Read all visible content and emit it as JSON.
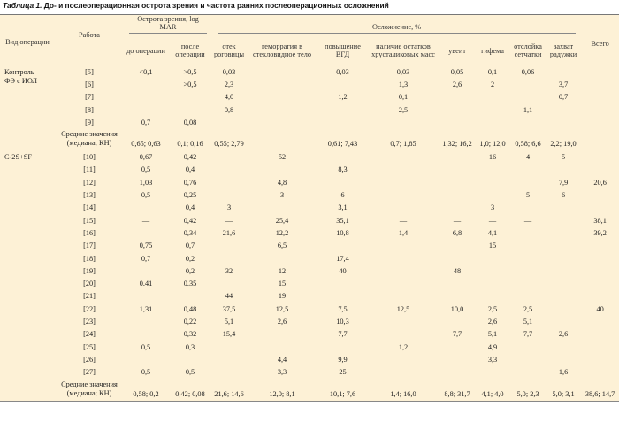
{
  "caption": {
    "prefix": "Таблица 1.",
    "text": " До- и послеоперационная острота зрения и частота ранних послеоперационных осложнений"
  },
  "header": {
    "col_type": "Вид операции",
    "col_work": "Работа",
    "group_acuity": "Острота зрения, log MAR",
    "group_complications": "Осложнение, %",
    "sub": [
      "до операции",
      "после операции",
      "отек роговицы",
      "геморрагия в стекловидное тело",
      "повышение ВГД",
      "наличие остатков хрусталиковых масс",
      "увеит",
      "гифема",
      "отслойка сетчатки",
      "захват радужки",
      "Всего"
    ]
  },
  "groups": [
    {
      "name": "Контроль — ФЭ с ИОЛ",
      "rows": [
        {
          "work": "[5]",
          "values": [
            "<0,1",
            ">0,5",
            "0,03",
            "",
            "0,03",
            "0,03",
            "0,05",
            "0,1",
            "0,06",
            "",
            ""
          ]
        },
        {
          "work": "[6]",
          "values": [
            "",
            ">0,5",
            "2,3",
            "",
            "",
            "1,3",
            "2,6",
            "2",
            "",
            "3,7",
            ""
          ]
        },
        {
          "work": "[7]",
          "values": [
            "",
            "",
            "4,0",
            "",
            "1,2",
            "0,1",
            "",
            "",
            "",
            "0,7",
            ""
          ]
        },
        {
          "work": "[8]",
          "values": [
            "",
            "",
            "0,8",
            "",
            "",
            "2,5",
            "",
            "",
            "1,1",
            "",
            ""
          ]
        },
        {
          "work": "[9]",
          "values": [
            "0,7",
            "0,08",
            "",
            "",
            "",
            "",
            "",
            "",
            "",
            "",
            ""
          ]
        }
      ],
      "mean": {
        "label": "Средние значения (медиана; КН)",
        "values": [
          "0,65; 0,63",
          "0,1; 0,16",
          "0,55; 2,79",
          "",
          "0,61; 7,43",
          "0,7; 1,85",
          "1,32; 16,2",
          "1,0; 12,0",
          "0,58; 6,6",
          "2,2; 19,0",
          ""
        ]
      }
    },
    {
      "name": "С-2S+SF",
      "rows": [
        {
          "work": "[10]",
          "values": [
            "0,67",
            "0,42",
            "",
            "52",
            "",
            "",
            "",
            "16",
            "4",
            "5",
            ""
          ]
        },
        {
          "work": "[11]",
          "values": [
            "0,5",
            "0,4",
            "",
            "",
            "8,3",
            "",
            "",
            "",
            "",
            "",
            ""
          ]
        },
        {
          "work": "[12]",
          "values": [
            "1,03",
            "0,76",
            "",
            "4,8",
            "",
            "",
            "",
            "",
            "",
            "7,9",
            "20,6"
          ]
        },
        {
          "work": "[13]",
          "values": [
            "0,5",
            "0,25",
            "",
            "3",
            "6",
            "",
            "",
            "",
            "5",
            "6",
            ""
          ]
        },
        {
          "work": "[14]",
          "values": [
            "",
            "0,4",
            "3",
            "",
            "3,1",
            "",
            "",
            "3",
            "",
            "",
            ""
          ]
        },
        {
          "work": "[15]",
          "values": [
            "—",
            "0,42",
            "—",
            "25,4",
            "35,1",
            "—",
            "—",
            "—",
            "—",
            "",
            "38,1"
          ]
        },
        {
          "work": "[16]",
          "values": [
            "",
            "0,34",
            "21,6",
            "12,2",
            "10,8",
            "1,4",
            "6,8",
            "4,1",
            "",
            "",
            "39,2"
          ]
        },
        {
          "work": "[17]",
          "values": [
            "0,75",
            "0,7",
            "",
            "6,5",
            "",
            "",
            "",
            "15",
            "",
            "",
            ""
          ]
        },
        {
          "work": "[18]",
          "values": [
            "0,7",
            "0,2",
            "",
            "",
            "17,4",
            "",
            "",
            "",
            "",
            "",
            ""
          ]
        },
        {
          "work": "[19]",
          "values": [
            "",
            "0,2",
            "32",
            "12",
            "40",
            "",
            "48",
            "",
            "",
            "",
            ""
          ]
        },
        {
          "work": "[20]",
          "values": [
            "0.41",
            "0.35",
            "",
            "15",
            "",
            "",
            "",
            "",
            "",
            "",
            ""
          ]
        },
        {
          "work": "[21]",
          "values": [
            "",
            "",
            "44",
            "19",
            "",
            "",
            "",
            "",
            "",
            "",
            ""
          ]
        },
        {
          "work": "[22]",
          "values": [
            "1,31",
            "0,48",
            "37,5",
            "12,5",
            "7,5",
            "12,5",
            "10,0",
            "2,5",
            "2,5",
            "",
            "40"
          ]
        },
        {
          "work": "[23]",
          "values": [
            "",
            "0,22",
            "5,1",
            "2,6",
            "10,3",
            "",
            "",
            "2,6",
            "5,1",
            "",
            ""
          ]
        },
        {
          "work": "[24]",
          "values": [
            "",
            "0,32",
            "15,4",
            "",
            "7,7",
            "",
            "7,7",
            "5,1",
            "7,7",
            "2,6",
            ""
          ]
        },
        {
          "work": "[25]",
          "values": [
            "0,5",
            "0,3",
            "",
            "",
            "",
            "1,2",
            "",
            "4,9",
            "",
            "",
            ""
          ]
        },
        {
          "work": "[26]",
          "values": [
            "",
            "",
            "",
            "4,4",
            "9,9",
            "",
            "",
            "3,3",
            "",
            "",
            ""
          ]
        },
        {
          "work": "[27]",
          "values": [
            "0,5",
            "0,5",
            "",
            "3,3",
            "25",
            "",
            "",
            "",
            "",
            "1,6",
            ""
          ]
        }
      ],
      "mean": {
        "label": "Средние значения (медиана; КН)",
        "values": [
          "0,58; 0,2",
          "0,42; 0,08",
          "21,6; 14,6",
          "12,0; 8,1",
          "10,1; 7,6",
          "1,4; 16,0",
          "8,8; 31,7",
          "4,1; 4,0",
          "5,0; 2,3",
          "5,0; 3,1",
          "38,6; 14,7"
        ]
      }
    }
  ]
}
